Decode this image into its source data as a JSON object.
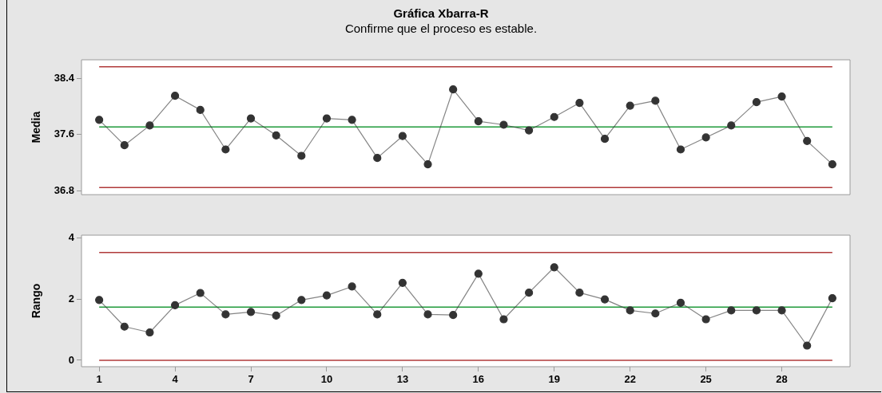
{
  "chart_data": [
    {
      "type": "line",
      "title": "Gráfica Xbarra-R",
      "subtitle": "Confirme que el proceso es estable.",
      "ylabel": "Media",
      "x": [
        1,
        2,
        3,
        4,
        5,
        6,
        7,
        8,
        9,
        10,
        11,
        12,
        13,
        14,
        15,
        16,
        17,
        18,
        19,
        20,
        21,
        22,
        23,
        24,
        25,
        26,
        27,
        28,
        29,
        30
      ],
      "series": [
        {
          "color": "#333333",
          "values": [
            37.81,
            37.45,
            37.73,
            38.15,
            37.95,
            37.39,
            37.83,
            37.59,
            37.3,
            37.83,
            37.81,
            37.27,
            37.58,
            37.18,
            38.24,
            37.79,
            37.74,
            37.66,
            37.85,
            38.05,
            37.54,
            38.01,
            38.08,
            37.39,
            37.56,
            37.73,
            38.06,
            38.14,
            37.51,
            37.18
          ]
        }
      ],
      "xlim": [
        0.3,
        30.7
      ],
      "ylim": [
        36.75,
        38.66
      ],
      "yticks": [
        36.8,
        37.6,
        38.4
      ],
      "tick_labels": "y",
      "grid": false,
      "legend": false,
      "marker": "circle",
      "line_style": "solid",
      "ref_lines": [
        {
          "axis": "y",
          "value": 38.56,
          "color": "#b03a3a"
        },
        {
          "axis": "y",
          "value": 37.71,
          "color": "#1f9a3a"
        },
        {
          "axis": "y",
          "value": 36.85,
          "color": "#b03a3a"
        }
      ]
    },
    {
      "type": "line",
      "ylabel": "Rango",
      "x": [
        1,
        2,
        3,
        4,
        5,
        6,
        7,
        8,
        9,
        10,
        11,
        12,
        13,
        14,
        15,
        16,
        17,
        18,
        19,
        20,
        21,
        22,
        23,
        24,
        25,
        26,
        27,
        28,
        29,
        30
      ],
      "series": [
        {
          "color": "#333333",
          "values": [
            1.97,
            1.1,
            0.91,
            1.8,
            2.2,
            1.5,
            1.58,
            1.46,
            1.97,
            2.12,
            2.41,
            1.5,
            2.53,
            1.5,
            1.48,
            2.83,
            1.34,
            2.21,
            3.04,
            2.21,
            1.99,
            1.63,
            1.53,
            1.88,
            1.34,
            1.63,
            1.63,
            1.63,
            0.48,
            2.03
          ]
        }
      ],
      "xlim": [
        0.3,
        30.7
      ],
      "xticks": [
        1,
        4,
        7,
        10,
        13,
        16,
        19,
        22,
        25,
        28
      ],
      "ylim": [
        -0.21,
        4.09
      ],
      "yticks": [
        0,
        2,
        4
      ],
      "grid": false,
      "legend": false,
      "marker": "circle",
      "line_style": "solid",
      "ref_lines": [
        {
          "axis": "y",
          "value": 3.52,
          "color": "#b03a3a"
        },
        {
          "axis": "y",
          "value": 1.74,
          "color": "#1f9a3a"
        },
        {
          "axis": "y",
          "value": 0,
          "color": "#b03a3a"
        }
      ]
    }
  ]
}
